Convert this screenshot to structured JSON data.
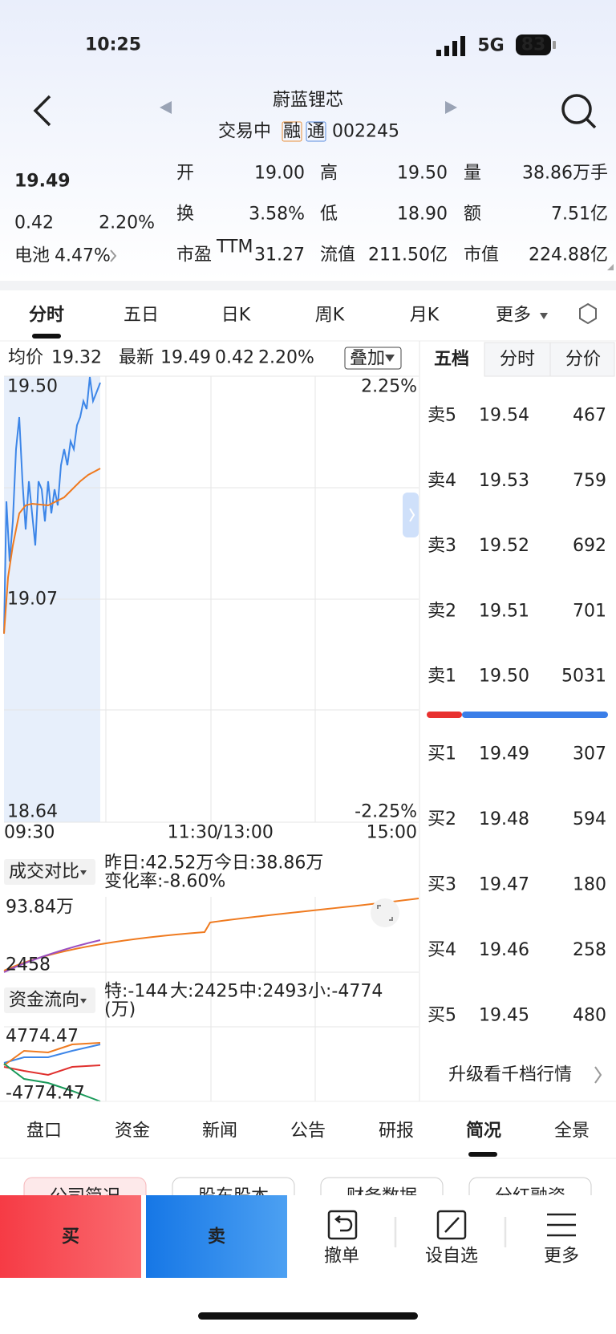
{
  "status_bar": {
    "time": "10:25",
    "network": "5G",
    "battery": "83"
  },
  "header": {
    "title": "蔚蓝锂芯",
    "state": "交易中",
    "badges": [
      "融",
      "通"
    ],
    "code": "002245"
  },
  "quote": {
    "price": "19.49",
    "change": "0.42",
    "percent": "2.20%",
    "sector": "电池",
    "sector_percent": "4.47%"
  },
  "stats": [
    [
      {
        "label": "开",
        "value": "19.00"
      },
      {
        "label": "高",
        "value": "19.50"
      },
      {
        "label": "量",
        "value": "38.86万手"
      }
    ],
    [
      {
        "label": "换",
        "value": "3.58%"
      },
      {
        "label": "低",
        "value": "18.90"
      },
      {
        "label": "额",
        "value": "7.51亿"
      }
    ],
    [
      {
        "label": "市盈",
        "sup": "TTM",
        "value": "31.27"
      },
      {
        "label": "流值",
        "value": "211.50亿"
      },
      {
        "label": "市值",
        "value": "224.88亿"
      }
    ]
  ],
  "chart_tabs": [
    "分时",
    "五日",
    "日K",
    "周K",
    "月K",
    "更多"
  ],
  "intraday": {
    "avg_label": "均价",
    "avg": "19.32",
    "latest_label": "最新",
    "latest": "19.49",
    "change": "0.42",
    "percent": "2.20%",
    "overlay": "叠加",
    "left_labels": [
      "19.50",
      "19.07",
      "18.64"
    ],
    "right_labels": [
      "2.25%",
      "-2.25%"
    ],
    "time_labels": [
      "09:30",
      "11:30",
      "/13:00",
      "15:00"
    ]
  },
  "volume": {
    "selector": "成交对比",
    "yesterday": "昨日:42.52万",
    "today": "今日:38.86万",
    "rate": "变化率:-8.60%",
    "max": "93.84万",
    "min": "2458"
  },
  "fund_flow": {
    "selector": "资金流向",
    "items": [
      "特:-144",
      "大:2425",
      "中:2493",
      "小:-4774"
    ],
    "unit": "(万)",
    "max": "4774.47",
    "min": "-4774.47"
  },
  "order_book": {
    "tabs": [
      "五档",
      "分时",
      "分价"
    ],
    "asks": [
      {
        "label": "卖5",
        "price": "19.54",
        "volume": "467"
      },
      {
        "label": "卖4",
        "price": "19.53",
        "volume": "759"
      },
      {
        "label": "卖3",
        "price": "19.52",
        "volume": "692"
      },
      {
        "label": "卖2",
        "price": "19.51",
        "volume": "701"
      },
      {
        "label": "卖1",
        "price": "19.50",
        "volume": "5031"
      }
    ],
    "bids": [
      {
        "label": "买1",
        "price": "19.49",
        "volume": "307"
      },
      {
        "label": "买2",
        "price": "19.48",
        "volume": "594"
      },
      {
        "label": "买3",
        "price": "19.47",
        "volume": "180"
      },
      {
        "label": "买4",
        "price": "19.46",
        "volume": "258"
      },
      {
        "label": "买5",
        "price": "19.45",
        "volume": "480"
      }
    ],
    "upgrade": "升级看千档行情"
  },
  "bottom_tabs": [
    "盘口",
    "资金",
    "新闻",
    "公告",
    "研报",
    "简况",
    "全景"
  ],
  "chips": [
    "公司简况",
    "股东股本",
    "财务数据",
    "分红融资"
  ],
  "actions": {
    "buy": "买",
    "sell": "卖",
    "items": [
      "撤单",
      "设自选",
      "更多"
    ]
  }
}
